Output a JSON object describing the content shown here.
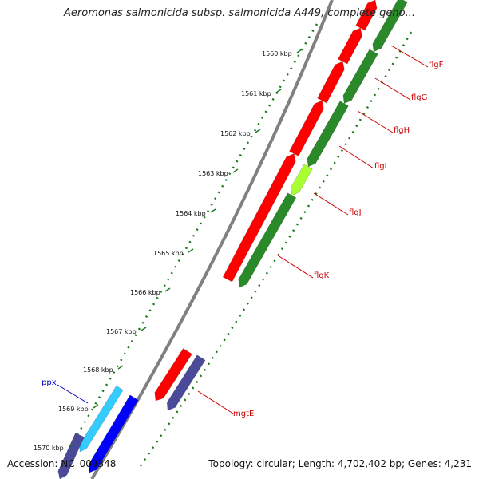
{
  "title": "Aeromonas salmonicida subsp. salmonicida A449, complete geno...",
  "footer": {
    "accession": "Accession: NC_009348",
    "topology": "Topology: circular; Length: 4,702,402 bp; Genes: 4,231"
  },
  "ticks": [
    "1560 kbp",
    "1561 kbp",
    "1562 kbp",
    "1563 kbp",
    "1564 kbp",
    "1565 kbp",
    "1566 kbp",
    "1567 kbp",
    "1568 kbp",
    "1569 kbp",
    "1570 kbp"
  ],
  "genes": [
    {
      "name": "flgF",
      "color": "#cc0000"
    },
    {
      "name": "flgG",
      "color": "#cc0000"
    },
    {
      "name": "flgH",
      "color": "#cc0000"
    },
    {
      "name": "flgI",
      "color": "#cc0000"
    },
    {
      "name": "flgJ",
      "color": "#cc0000"
    },
    {
      "name": "flgK",
      "color": "#cc0000"
    },
    {
      "name": "mgtE",
      "color": "#cc0000"
    },
    {
      "name": "ppx",
      "color": "#0000cc"
    }
  ],
  "colors": {
    "cds_forward": "#ff0000",
    "cds_other": "#2a8a2a",
    "cds_highlight": "#aaff33",
    "blue_gene": "#0000ff",
    "cyan_gene": "#33ccff",
    "purple_gene": "#4a4a99",
    "backbone": "#808080",
    "tick_dots": "#1a7a1a"
  }
}
